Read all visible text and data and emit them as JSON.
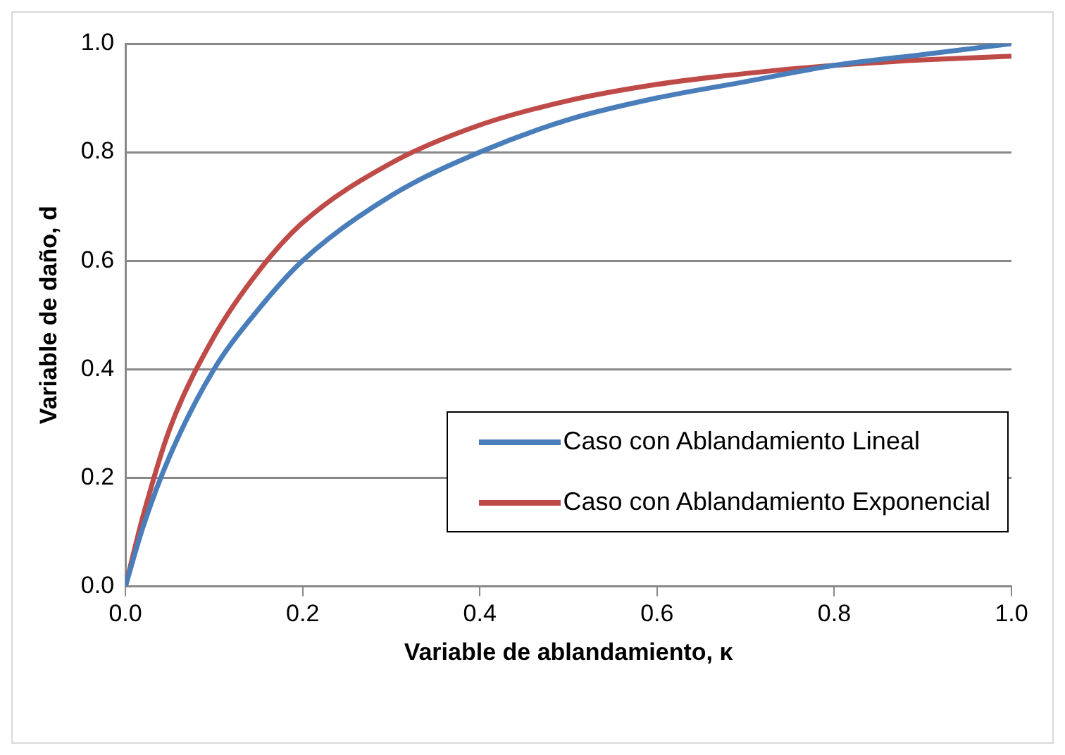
{
  "chart_data": {
    "type": "line",
    "xlabel": "Variable de ablandamiento, κ",
    "ylabel": "Variable de daño, d",
    "x": [
      0,
      0.02,
      0.05,
      0.1,
      0.15,
      0.2,
      0.3,
      0.4,
      0.5,
      0.6,
      0.7,
      0.8,
      0.9,
      1.0
    ],
    "series": [
      {
        "name": "Caso con Ablandamiento Lineal",
        "color": "#4a7ebb",
        "values": [
          0,
          0.11,
          0.24,
          0.4,
          0.51,
          0.6,
          0.72,
          0.8,
          0.86,
          0.9,
          0.93,
          0.96,
          0.98,
          1.0
        ]
      },
      {
        "name": "Caso con Ablandamiento Exponencial",
        "color": "#be4b48",
        "values": [
          0,
          0.13,
          0.29,
          0.46,
          0.58,
          0.67,
          0.78,
          0.85,
          0.895,
          0.925,
          0.945,
          0.96,
          0.97,
          0.977
        ]
      }
    ],
    "xlim": [
      0,
      1
    ],
    "xticks": [
      {
        "value": 0,
        "label": "0.0"
      },
      {
        "value": 0.2,
        "label": "0.2"
      },
      {
        "value": 0.4,
        "label": "0.4"
      },
      {
        "value": 0.6,
        "label": "0.6"
      },
      {
        "value": 0.8,
        "label": "0.8"
      },
      {
        "value": 1,
        "label": "1.0"
      }
    ],
    "ylim": [
      0,
      1
    ],
    "yticks": [
      {
        "value": 0,
        "label": "0.0"
      },
      {
        "value": 0.2,
        "label": "0.2"
      },
      {
        "value": 0.4,
        "label": "0.4"
      },
      {
        "value": 0.6,
        "label": "0.6"
      },
      {
        "value": 0.8,
        "label": "0.8"
      },
      {
        "value": 1,
        "label": "1.0"
      }
    ],
    "grid": "y",
    "legend": "bottom right",
    "marker": "none",
    "line_style": "solid"
  }
}
